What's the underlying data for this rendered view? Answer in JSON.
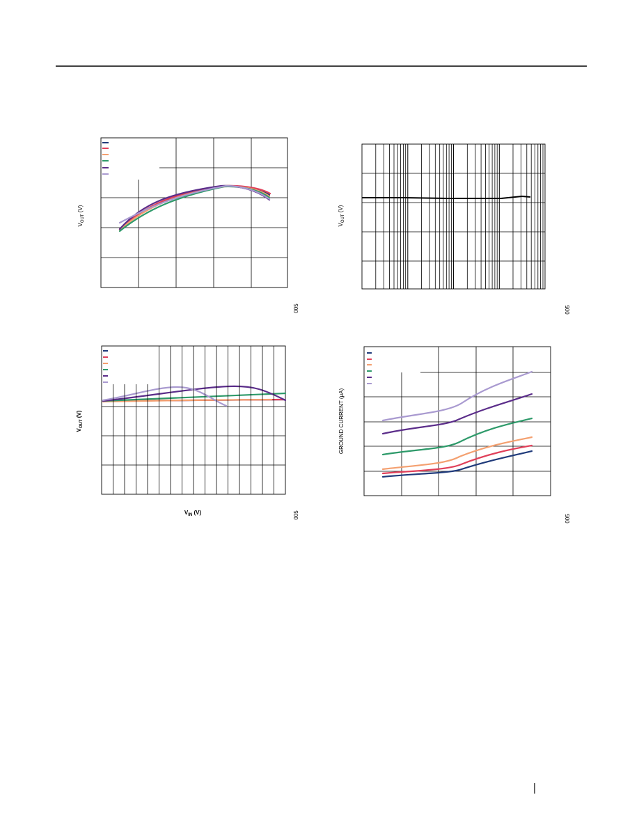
{
  "figures": [
    {
      "ylabel": {
        "main": "V",
        "sub": "OUT",
        "unit": " (V)"
      },
      "code": "005"
    },
    {
      "ylabel": {
        "main": "V",
        "sub": "OUT",
        "unit": " (V)"
      },
      "code": "005"
    },
    {
      "ylabel": {
        "main": "V",
        "sub": "OUT",
        "unit": " (V)"
      },
      "xlabel": {
        "main": "V",
        "sub": "IN",
        "unit": " (V)"
      },
      "code": "005"
    },
    {
      "ylabel": {
        "main": "GROUND CURRENT (μA)"
      },
      "code": "005"
    }
  ]
}
